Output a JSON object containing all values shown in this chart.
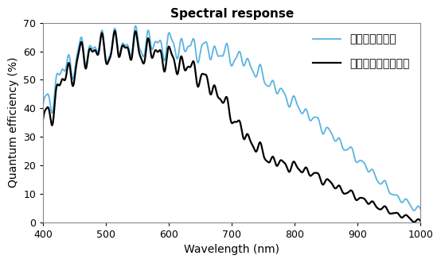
{
  "title": "Spectral response",
  "xlabel": "Wavelength (nm)",
  "ylabel": "Quantum efficiency (%)",
  "xlim": [
    400,
    1000
  ],
  "ylim": [
    0,
    70
  ],
  "xticks": [
    400,
    500,
    600,
    700,
    800,
    900,
    1000
  ],
  "yticks": [
    0,
    10,
    20,
    30,
    40,
    50,
    60,
    70
  ],
  "nir_label": "近赤外線モデル",
  "mono_label": "通常モノクロモデル",
  "nir_color": "#5ab4e0",
  "mono_color": "#000000",
  "background_color": "#ffffff",
  "plot_border_color": "#aaaaaa",
  "title_fontsize": 11,
  "axis_label_fontsize": 10,
  "tick_fontsize": 9,
  "legend_fontsize": 10
}
